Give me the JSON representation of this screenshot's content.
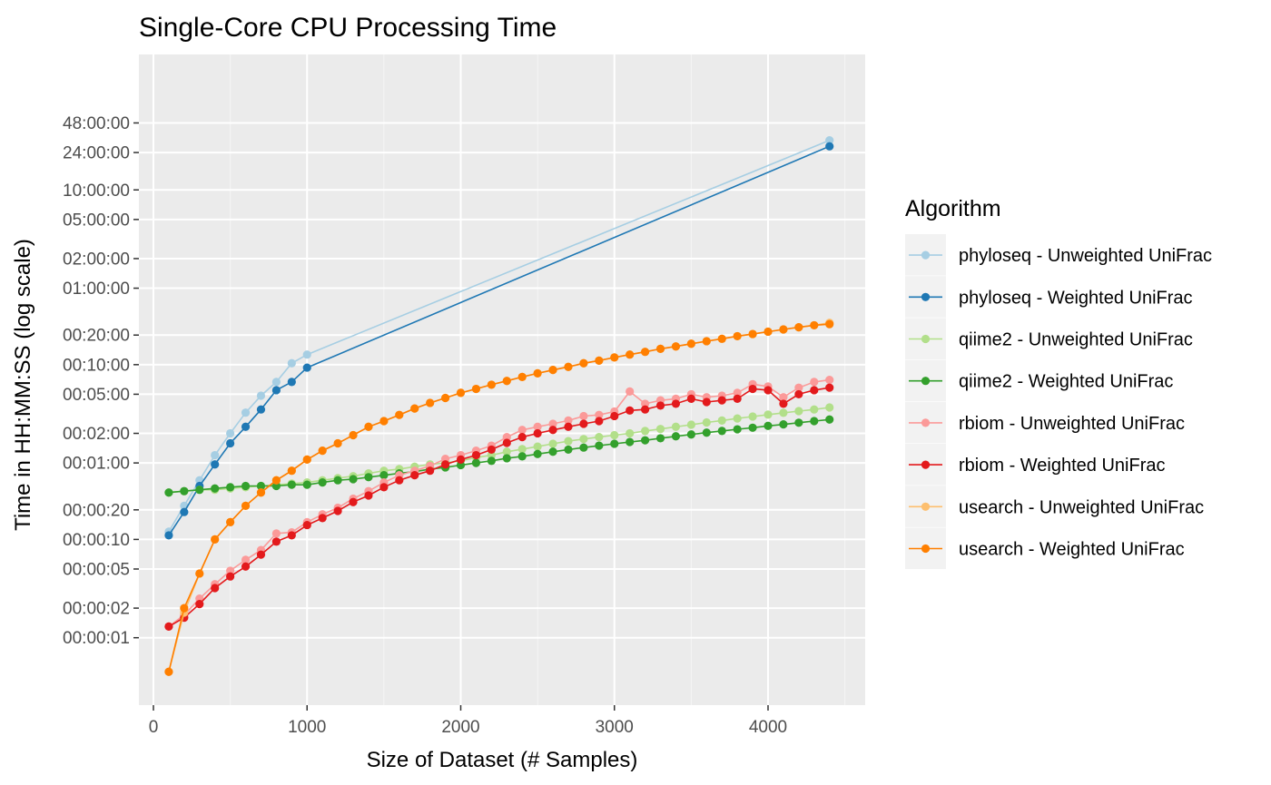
{
  "chart_data": {
    "type": "line",
    "title": "Single-Core CPU Processing Time",
    "xlabel": "Size of Dataset (# Samples)",
    "ylabel": "Time in HH:MM:SS (log scale)",
    "x_scale": "linear",
    "y_scale": "log",
    "xlim": [
      0,
      4500
    ],
    "ylim_seconds": [
      0.2,
      260000
    ],
    "grid": true,
    "legend_title": "Algorithm",
    "legend_position": "right",
    "x_ticks": [
      {
        "value": 0,
        "label": "0"
      },
      {
        "value": 1000,
        "label": "1000"
      },
      {
        "value": 2000,
        "label": "2000"
      },
      {
        "value": 3000,
        "label": "3000"
      },
      {
        "value": 4000,
        "label": "4000"
      }
    ],
    "y_ticks": [
      {
        "seconds": 1,
        "label": "00:00:01"
      },
      {
        "seconds": 2,
        "label": "00:00:02"
      },
      {
        "seconds": 5,
        "label": "00:00:05"
      },
      {
        "seconds": 10,
        "label": "00:00:10"
      },
      {
        "seconds": 20,
        "label": "00:00:20"
      },
      {
        "seconds": 60,
        "label": "00:01:00"
      },
      {
        "seconds": 120,
        "label": "00:02:00"
      },
      {
        "seconds": 300,
        "label": "00:05:00"
      },
      {
        "seconds": 600,
        "label": "00:10:00"
      },
      {
        "seconds": 1200,
        "label": "00:20:00"
      },
      {
        "seconds": 3600,
        "label": "01:00:00"
      },
      {
        "seconds": 7200,
        "label": "02:00:00"
      },
      {
        "seconds": 18000,
        "label": "05:00:00"
      },
      {
        "seconds": 36000,
        "label": "10:00:00"
      },
      {
        "seconds": 86400,
        "label": "24:00:00"
      },
      {
        "seconds": 172800,
        "label": "48:00:00"
      }
    ],
    "series": [
      {
        "name": "phyloseq - Unweighted UniFrac",
        "color": "#a6cee3",
        "x": [
          100,
          200,
          300,
          400,
          500,
          600,
          700,
          800,
          900,
          1000,
          4400
        ],
        "y": [
          12,
          22,
          40,
          72,
          120,
          195,
          290,
          400,
          620,
          760,
          115000
        ]
      },
      {
        "name": "phyloseq - Weighted UniFrac",
        "color": "#1f78b4",
        "x": [
          100,
          200,
          300,
          400,
          500,
          600,
          700,
          800,
          900,
          1000,
          4400
        ],
        "y": [
          11,
          19,
          35,
          58,
          95,
          140,
          210,
          330,
          400,
          560,
          100000
        ]
      },
      {
        "name": "qiime2 - Unweighted UniFrac",
        "color": "#b2df8a",
        "x": [
          100,
          200,
          300,
          400,
          500,
          600,
          700,
          800,
          900,
          1000,
          1100,
          1200,
          1300,
          1400,
          1500,
          1600,
          1700,
          1800,
          1900,
          2000,
          2100,
          2200,
          2300,
          2400,
          2500,
          2600,
          2700,
          2800,
          2900,
          3000,
          3100,
          3200,
          3300,
          3400,
          3500,
          3600,
          3700,
          3800,
          3900,
          4000,
          4100,
          4200,
          4300,
          4400
        ],
        "y": [
          30,
          31,
          32,
          32,
          33,
          34,
          35,
          36,
          37,
          38,
          40,
          42,
          44,
          47,
          50,
          52,
          55,
          58,
          60,
          63,
          68,
          72,
          78,
          83,
          88,
          94,
          100,
          105,
          110,
          115,
          120,
          127,
          133,
          140,
          147,
          155,
          162,
          170,
          178,
          186,
          194,
          202,
          210,
          220
        ]
      },
      {
        "name": "qiime2 - Weighted UniFrac",
        "color": "#33a02c",
        "x": [
          100,
          200,
          300,
          400,
          500,
          600,
          700,
          800,
          900,
          1000,
          1100,
          1200,
          1300,
          1400,
          1500,
          1600,
          1700,
          1800,
          1900,
          2000,
          2100,
          2200,
          2300,
          2400,
          2500,
          2600,
          2700,
          2800,
          2900,
          3000,
          3100,
          3200,
          3300,
          3400,
          3500,
          3600,
          3700,
          3800,
          3900,
          4000,
          4100,
          4200,
          4300,
          4400
        ],
        "y": [
          30,
          31,
          32,
          33,
          34,
          35,
          35,
          35,
          36,
          36,
          38,
          40,
          41,
          43,
          45,
          47,
          49,
          52,
          54,
          57,
          60,
          63,
          67,
          70,
          74,
          78,
          82,
          86,
          90,
          94,
          98,
          102,
          107,
          112,
          117,
          122,
          127,
          132,
          137,
          143,
          148,
          154,
          160,
          166
        ]
      },
      {
        "name": "rbiom - Unweighted UniFrac",
        "color": "#fb9a99",
        "x": [
          100,
          200,
          300,
          400,
          500,
          600,
          700,
          800,
          900,
          1000,
          1100,
          1200,
          1300,
          1400,
          1500,
          1600,
          1700,
          1800,
          1900,
          2000,
          2100,
          2200,
          2300,
          2400,
          2500,
          2600,
          2700,
          2800,
          2900,
          3000,
          3100,
          3200,
          3300,
          3400,
          3500,
          3600,
          3700,
          3800,
          3900,
          4000,
          4100,
          4200,
          4300,
          4400
        ],
        "y": [
          1.3,
          1.7,
          2.5,
          3.5,
          4.8,
          6.2,
          7.8,
          11.5,
          11.8,
          15,
          18,
          21,
          26,
          31,
          38,
          45,
          50,
          56,
          66,
          72,
          80,
          90,
          110,
          130,
          140,
          150,
          162,
          180,
          185,
          200,
          320,
          240,
          260,
          270,
          300,
          280,
          290,
          310,
          380,
          360,
          280,
          350,
          400,
          420
        ]
      },
      {
        "name": "rbiom - Weighted UniFrac",
        "color": "#e31a1c",
        "x": [
          100,
          200,
          300,
          400,
          500,
          600,
          700,
          800,
          900,
          1000,
          1100,
          1200,
          1300,
          1400,
          1500,
          1600,
          1700,
          1800,
          1900,
          2000,
          2100,
          2200,
          2300,
          2400,
          2500,
          2600,
          2700,
          2800,
          2900,
          3000,
          3100,
          3200,
          3300,
          3400,
          3500,
          3600,
          3700,
          3800,
          3900,
          4000,
          4100,
          4200,
          4300,
          4400
        ],
        "y": [
          1.3,
          1.6,
          2.2,
          3.2,
          4.2,
          5.3,
          7,
          9.5,
          11,
          14,
          16.5,
          19.5,
          24,
          28,
          34,
          40,
          45,
          50,
          58,
          65,
          72,
          82,
          96,
          110,
          120,
          130,
          140,
          150,
          160,
          180,
          205,
          210,
          230,
          240,
          270,
          250,
          260,
          270,
          340,
          330,
          240,
          300,
          330,
          350
        ]
      },
      {
        "name": "usearch - Unweighted UniFrac",
        "color": "#fdbf6f",
        "x": [
          100,
          200,
          300,
          400,
          500,
          600,
          700,
          800,
          900,
          1000,
          1100,
          1200,
          1300,
          1400,
          1500,
          1600,
          1700,
          1800,
          1900,
          2000,
          2100,
          2200,
          2300,
          2400,
          2500,
          2600,
          2700,
          2800,
          2900,
          3000,
          3100,
          3200,
          3300,
          3400,
          3500,
          3600,
          3700,
          3800,
          3900,
          4000,
          4100,
          4200,
          4300,
          4400
        ],
        "y": [
          0.45,
          1.8,
          4.5,
          10,
          15,
          22,
          30,
          40,
          50,
          65,
          80,
          95,
          115,
          140,
          160,
          185,
          215,
          245,
          275,
          310,
          340,
          375,
          410,
          450,
          490,
          530,
          570,
          620,
          660,
          710,
          760,
          810,
          870,
          920,
          980,
          1040,
          1100,
          1170,
          1230,
          1300,
          1370,
          1440,
          1510,
          1600
        ]
      },
      {
        "name": "usearch - Weighted UniFrac",
        "color": "#ff7f00",
        "x": [
          100,
          200,
          300,
          400,
          500,
          600,
          700,
          800,
          900,
          1000,
          1100,
          1200,
          1300,
          1400,
          1500,
          1600,
          1700,
          1800,
          1900,
          2000,
          2100,
          2200,
          2300,
          2400,
          2500,
          2600,
          2700,
          2800,
          2900,
          3000,
          3100,
          3200,
          3300,
          3400,
          3500,
          3600,
          3700,
          3800,
          3900,
          4000,
          4100,
          4200,
          4300,
          4400
        ],
        "y": [
          0.45,
          2,
          4.5,
          10,
          15,
          22,
          30,
          40,
          50,
          65,
          80,
          95,
          115,
          140,
          160,
          185,
          215,
          245,
          275,
          310,
          340,
          375,
          410,
          450,
          490,
          530,
          570,
          620,
          660,
          710,
          760,
          810,
          870,
          920,
          980,
          1040,
          1100,
          1170,
          1230,
          1300,
          1370,
          1440,
          1510,
          1550
        ]
      }
    ]
  }
}
